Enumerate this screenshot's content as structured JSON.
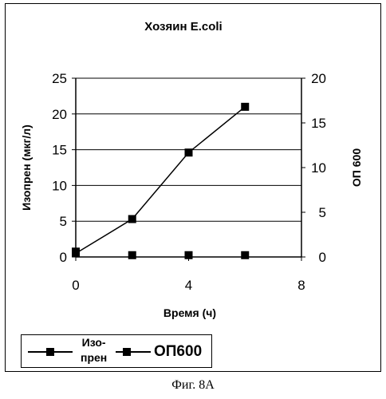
{
  "chart_data": {
    "type": "line",
    "title": "Хозяин E.coli",
    "xlabel": "Время (ч)",
    "ylabel_left": "Изопрен (мкг/л)",
    "ylabel_right": "ОП 600",
    "xlim": [
      0,
      8
    ],
    "ylim_left": [
      0,
      25
    ],
    "ylim_right": [
      0,
      20
    ],
    "x_ticks": [
      "0",
      "4",
      "8"
    ],
    "y_left_ticks": [
      "0",
      "5",
      "10",
      "15",
      "20",
      "25"
    ],
    "y_right_ticks": [
      "0",
      "5",
      "10",
      "15",
      "20"
    ],
    "grid": "horizontal",
    "legend_position": "bottom",
    "series": [
      {
        "name": "Изо-\nпрен",
        "axis": "left",
        "line": true,
        "marker": "square",
        "x": [
          0,
          2,
          4,
          6
        ],
        "y": [
          0.5,
          5.3,
          14.6,
          21
        ]
      },
      {
        "name": "ОП600",
        "axis": "right",
        "line": false,
        "marker": "square",
        "x": [
          0,
          2,
          4,
          6
        ],
        "y": [
          0.6,
          0.2,
          0.2,
          0.2
        ]
      }
    ]
  },
  "caption": "Фиг. 8А"
}
